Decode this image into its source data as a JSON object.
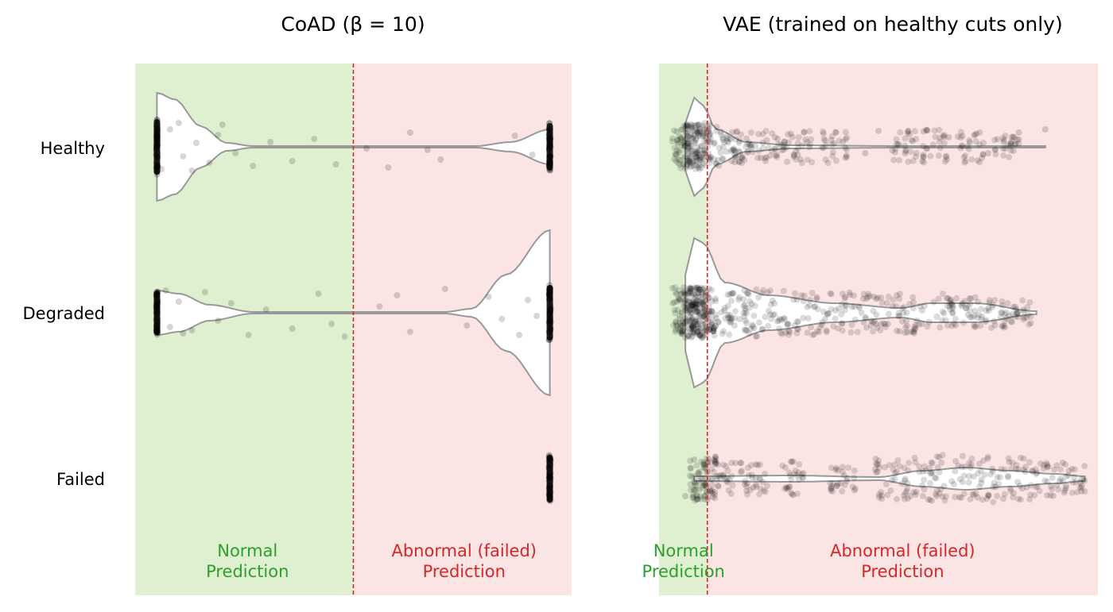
{
  "colors": {
    "normal_bg": "#dff0d0",
    "abnormal_bg": "#fbe4e4",
    "normal_text": "#2ca02c",
    "abnormal_text": "#d62728",
    "threshold_line": "#d62728",
    "violin_edge": "#999999",
    "point": "#000000"
  },
  "chart_data": [
    {
      "type": "violin",
      "title": "CoAD (β = 10)",
      "categories": [
        "Healthy",
        "Degraded",
        "Failed"
      ],
      "xlim": [
        0,
        1
      ],
      "threshold": 0.5,
      "regions": {
        "normal_label": [
          "Normal",
          "Prediction"
        ],
        "abnormal_label": [
          "Abnormal (failed)",
          "Prediction"
        ]
      },
      "violins": [
        {
          "category": "Healthy",
          "range": [
            0.05,
            0.95
          ],
          "profile": [
            [
              0.05,
              68
            ],
            [
              0.09,
              60
            ],
            [
              0.15,
              26
            ],
            [
              0.21,
              5
            ],
            [
              0.27,
              1
            ],
            [
              0.5,
              1
            ],
            [
              0.78,
              1
            ],
            [
              0.86,
              6
            ],
            [
              0.95,
              22
            ]
          ]
        },
        {
          "category": "Degraded",
          "range": [
            0.05,
            0.95
          ],
          "profile": [
            [
              0.05,
              28
            ],
            [
              0.1,
              24
            ],
            [
              0.17,
              10
            ],
            [
              0.27,
              1
            ],
            [
              0.5,
              1
            ],
            [
              0.71,
              1
            ],
            [
              0.77,
              5
            ],
            [
              0.85,
              48
            ],
            [
              0.95,
              104
            ]
          ]
        },
        {
          "category": "Failed",
          "range": [
            0.95,
            0.95
          ],
          "profile": []
        }
      ],
      "point_groups": [
        {
          "category": "Healthy",
          "dense": [
            [
              0.05,
              35
            ],
            [
              0.95,
              30
            ]
          ],
          "scatter": [
            [
              0.08,
              -22
            ],
            [
              0.11,
              12
            ],
            [
              0.14,
              -5
            ],
            [
              0.17,
              20
            ],
            [
              0.2,
              -28
            ],
            [
              0.23,
              8
            ],
            [
              0.27,
              24
            ],
            [
              0.31,
              -6
            ],
            [
              0.36,
              18
            ],
            [
              0.41,
              -10
            ],
            [
              0.46,
              22
            ],
            [
              0.53,
              2
            ],
            [
              0.58,
              26
            ],
            [
              0.63,
              -18
            ],
            [
              0.67,
              4
            ],
            [
              0.7,
              16
            ],
            [
              0.87,
              -14
            ],
            [
              0.91,
              10
            ],
            [
              0.06,
              28
            ],
            [
              0.1,
              -30
            ],
            [
              0.13,
              30
            ],
            [
              0.19,
              -15
            ]
          ]
        },
        {
          "category": "Degraded",
          "dense": [
            [
              0.05,
              28
            ],
            [
              0.95,
              35
            ]
          ],
          "scatter": [
            [
              0.08,
              18
            ],
            [
              0.1,
              -14
            ],
            [
              0.13,
              22
            ],
            [
              0.16,
              -26
            ],
            [
              0.19,
              10
            ],
            [
              0.22,
              -12
            ],
            [
              0.26,
              28
            ],
            [
              0.3,
              -4
            ],
            [
              0.36,
              20
            ],
            [
              0.42,
              -24
            ],
            [
              0.48,
              30
            ],
            [
              0.56,
              -8
            ],
            [
              0.63,
              24
            ],
            [
              0.71,
              -30
            ],
            [
              0.76,
              16
            ],
            [
              0.81,
              -20
            ],
            [
              0.84,
              8
            ],
            [
              0.88,
              28
            ],
            [
              0.9,
              -16
            ],
            [
              0.92,
              4
            ],
            [
              0.07,
              -28
            ],
            [
              0.11,
              26
            ],
            [
              0.45,
              14
            ],
            [
              0.6,
              -22
            ]
          ]
        },
        {
          "category": "Failed",
          "dense": [
            [
              0.95,
              30
            ]
          ],
          "scatter": []
        }
      ]
    },
    {
      "type": "violin",
      "title": "VAE (trained on healthy cuts only)",
      "categories": [
        "Healthy",
        "Degraded",
        "Failed"
      ],
      "xlim": [
        0,
        1
      ],
      "threshold": 0.11,
      "regions": {
        "normal_label": [
          "Normal",
          "Prediction"
        ],
        "abnormal_label": [
          "Abnormal (failed)",
          "Prediction"
        ]
      },
      "violins": [
        {
          "category": "Healthy",
          "range": [
            0.06,
            0.88
          ],
          "profile": [
            [
              0.06,
              30
            ],
            [
              0.08,
              62
            ],
            [
              0.1,
              52
            ],
            [
              0.13,
              22
            ],
            [
              0.2,
              6
            ],
            [
              0.3,
              2
            ],
            [
              0.55,
              1
            ],
            [
              0.88,
              1
            ]
          ]
        },
        {
          "category": "Degraded",
          "range": [
            0.06,
            0.86
          ],
          "profile": [
            [
              0.06,
              48
            ],
            [
              0.08,
              94
            ],
            [
              0.1,
              88
            ],
            [
              0.15,
              38
            ],
            [
              0.25,
              22
            ],
            [
              0.4,
              12
            ],
            [
              0.55,
              6
            ],
            [
              0.62,
              12
            ],
            [
              0.72,
              12
            ],
            [
              0.86,
              2
            ]
          ]
        },
        {
          "category": "Failed",
          "range": [
            0.08,
            0.97
          ],
          "profile": [
            [
              0.08,
              3
            ],
            [
              0.3,
              4
            ],
            [
              0.5,
              2
            ],
            [
              0.6,
              10
            ],
            [
              0.7,
              14
            ],
            [
              0.8,
              10
            ],
            [
              0.9,
              6
            ],
            [
              0.97,
              3
            ]
          ]
        }
      ],
      "point_groups": [
        {
          "category": "Healthy",
          "dense": [
            [
              0.06,
              28
            ],
            [
              0.09,
              30
            ],
            [
              0.12,
              26
            ],
            [
              0.16,
              22
            ],
            [
              0.2,
              20
            ],
            [
              0.26,
              20
            ],
            [
              0.32,
              22
            ],
            [
              0.4,
              22
            ],
            [
              0.56,
              20
            ],
            [
              0.63,
              22
            ],
            [
              0.71,
              20
            ],
            [
              0.79,
              14
            ]
          ],
          "scatter": [
            [
              0.47,
              8
            ],
            [
              0.5,
              -20
            ],
            [
              0.6,
              18
            ],
            [
              0.66,
              -12
            ],
            [
              0.75,
              8
            ],
            [
              0.82,
              -18
            ],
            [
              0.88,
              -22
            ]
          ]
        },
        {
          "category": "Degraded",
          "dense": [
            [
              0.06,
              32
            ],
            [
              0.08,
              32
            ],
            [
              0.1,
              32
            ],
            [
              0.14,
              30
            ],
            [
              0.18,
              30
            ],
            [
              0.22,
              30
            ],
            [
              0.28,
              28
            ],
            [
              0.34,
              28
            ],
            [
              0.4,
              26
            ],
            [
              0.46,
              26
            ],
            [
              0.52,
              24
            ],
            [
              0.58,
              26
            ],
            [
              0.64,
              24
            ],
            [
              0.7,
              22
            ],
            [
              0.76,
              20
            ],
            [
              0.82,
              16
            ]
          ],
          "scatter": []
        },
        {
          "category": "Failed",
          "dense": [
            [
              0.1,
              28
            ],
            [
              0.16,
              20
            ],
            [
              0.22,
              20
            ],
            [
              0.3,
              22
            ],
            [
              0.42,
              18
            ],
            [
              0.52,
              26
            ],
            [
              0.58,
              28
            ],
            [
              0.64,
              30
            ],
            [
              0.7,
              30
            ],
            [
              0.76,
              30
            ],
            [
              0.82,
              28
            ],
            [
              0.88,
              22
            ],
            [
              0.94,
              18
            ]
          ],
          "scatter": [
            [
              0.06,
              22
            ],
            [
              0.08,
              -24
            ],
            [
              0.97,
              16
            ],
            [
              0.92,
              -20
            ]
          ]
        }
      ]
    }
  ]
}
